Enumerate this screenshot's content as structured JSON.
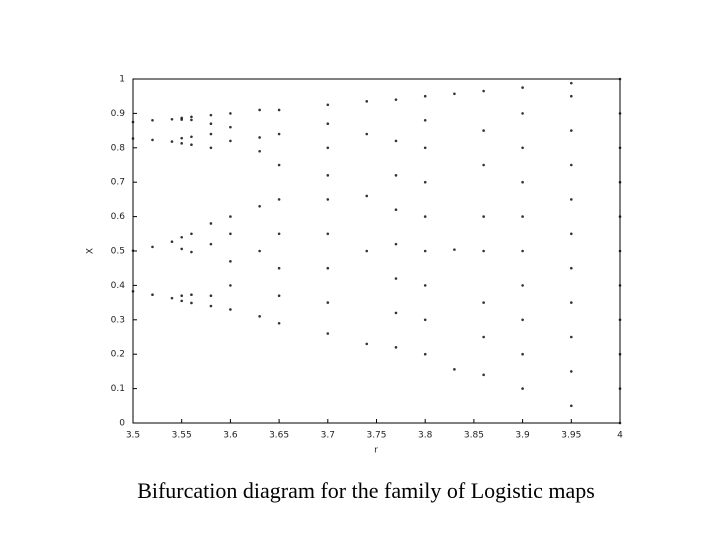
{
  "chart_data": {
    "type": "scatter",
    "title": "Bifurcation diagram for the family of Logistic maps",
    "xlabel": "r",
    "ylabel": "X",
    "xlim": [
      3.5,
      4
    ],
    "xticks": [
      3.5,
      3.55,
      3.6,
      3.65,
      3.7,
      3.75,
      3.8,
      3.85,
      3.9,
      3.95,
      4
    ],
    "ylim": [
      0,
      1
    ],
    "yticks": [
      0,
      0.1,
      0.2,
      0.3,
      0.4,
      0.5,
      0.6,
      0.7,
      0.8,
      0.9,
      1
    ],
    "color": "#000000",
    "x": [
      3.5,
      3.52,
      3.54,
      3.55,
      3.56,
      3.58,
      3.6,
      3.63,
      3.65,
      3.7,
      3.74,
      3.77,
      3.8,
      3.83,
      3.86,
      3.9,
      3.95,
      4
    ],
    "values": [
      [
        0.383,
        0.827,
        0.501,
        0.875
      ],
      [
        0.373,
        0.823,
        0.512,
        0.88
      ],
      [
        0.363,
        0.818,
        0.527,
        0.883
      ],
      [
        0.355,
        0.813,
        0.54,
        0.882,
        0.37,
        0.828,
        0.506,
        0.887
      ],
      [
        0.349,
        0.809,
        0.55,
        0.881,
        0.373,
        0.832,
        0.497,
        0.89
      ],
      [
        0.34,
        0.37,
        0.52,
        0.58,
        0.8,
        0.84,
        0.87,
        0.895
      ],
      [
        0.33,
        0.4,
        0.47,
        0.55,
        0.6,
        0.82,
        0.86,
        0.9
      ],
      [
        0.31,
        0.5,
        0.63,
        0.79,
        0.83,
        0.91
      ],
      [
        0.29,
        0.37,
        0.45,
        0.55,
        0.65,
        0.75,
        0.84,
        0.91
      ],
      [
        0.26,
        0.35,
        0.45,
        0.55,
        0.65,
        0.72,
        0.8,
        0.87,
        0.925
      ],
      [
        0.23,
        0.5,
        0.66,
        0.84,
        0.935
      ],
      [
        0.22,
        0.32,
        0.42,
        0.52,
        0.62,
        0.72,
        0.82,
        0.94
      ],
      [
        0.2,
        0.3,
        0.4,
        0.5,
        0.6,
        0.7,
        0.8,
        0.88,
        0.95
      ],
      [
        0.156,
        0.504,
        0.957
      ],
      [
        0.14,
        0.25,
        0.35,
        0.5,
        0.6,
        0.75,
        0.85,
        0.965
      ],
      [
        0.1,
        0.2,
        0.3,
        0.4,
        0.5,
        0.6,
        0.7,
        0.8,
        0.9,
        0.975
      ],
      [
        0.05,
        0.15,
        0.25,
        0.35,
        0.45,
        0.55,
        0.65,
        0.75,
        0.85,
        0.95,
        0.988
      ],
      [
        0,
        0.1,
        0.2,
        0.3,
        0.4,
        0.5,
        0.6,
        0.7,
        0.8,
        0.9,
        1
      ]
    ]
  }
}
